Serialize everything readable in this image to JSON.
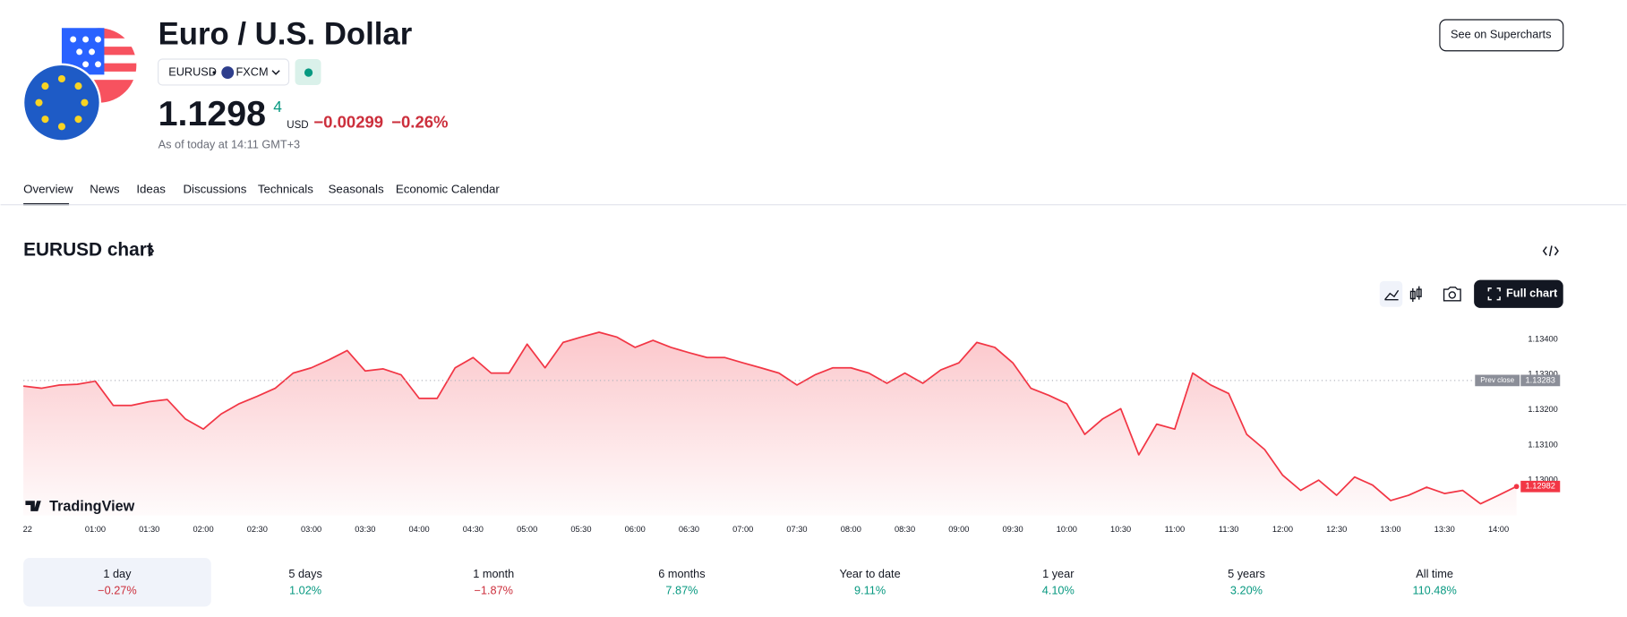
{
  "header": {
    "title": "Euro / U.S. Dollar",
    "symbol": "EURUSD",
    "exchange": "FXCM",
    "price": "1.1298",
    "price_extra_digit": "4",
    "currency": "USD",
    "change": "−0.00299",
    "change_percent": "−0.26%",
    "as_of": "As of today at 14:11 GMT+3"
  },
  "buttons": {
    "supercharts": "See on Supercharts",
    "full_chart": "Full chart"
  },
  "tabs": [
    "Overview",
    "News",
    "Ideas",
    "Discussions",
    "Technicals",
    "Seasonals",
    "Economic Calendar"
  ],
  "chart_section": {
    "title": "EURUSD chart"
  },
  "branding": "TradingView",
  "chart_data": {
    "type": "line",
    "color": "#f23645",
    "x": [
      "00:20",
      "00:30",
      "00:40",
      "00:50",
      "01:00",
      "01:10",
      "01:20",
      "01:30",
      "01:40",
      "01:50",
      "02:00",
      "02:10",
      "02:20",
      "02:30",
      "02:40",
      "02:50",
      "03:00",
      "03:10",
      "03:20",
      "03:30",
      "03:40",
      "03:50",
      "04:00",
      "04:10",
      "04:20",
      "04:30",
      "04:40",
      "04:50",
      "05:00",
      "05:10",
      "05:20",
      "05:30",
      "05:40",
      "05:50",
      "06:00",
      "06:10",
      "06:20",
      "06:30",
      "06:40",
      "06:50",
      "07:00",
      "07:10",
      "07:20",
      "07:30",
      "07:40",
      "07:50",
      "08:00",
      "08:10",
      "08:20",
      "08:30",
      "08:40",
      "08:50",
      "09:00",
      "09:10",
      "09:20",
      "09:30",
      "09:40",
      "09:50",
      "10:00",
      "10:10",
      "10:20",
      "10:30",
      "10:40",
      "10:50",
      "11:00",
      "11:10",
      "11:20",
      "11:30",
      "11:40",
      "11:50",
      "12:00",
      "12:10",
      "12:20",
      "12:30",
      "12:40",
      "12:50",
      "13:00",
      "13:10",
      "13:20",
      "13:30",
      "13:40",
      "13:50",
      "14:00",
      "14:10"
    ],
    "values": [
      1.13267,
      1.13261,
      1.1327,
      1.13272,
      1.13281,
      1.13212,
      1.13212,
      1.13223,
      1.13229,
      1.13174,
      1.13145,
      1.13188,
      1.13217,
      1.13238,
      1.13261,
      1.13304,
      1.13319,
      1.13342,
      1.13368,
      1.1331,
      1.13316,
      1.13299,
      1.13232,
      1.13232,
      1.13319,
      1.13348,
      1.13304,
      1.13304,
      1.13386,
      1.13319,
      1.13391,
      1.13406,
      1.1342,
      1.13406,
      1.13377,
      1.13397,
      1.13377,
      1.13362,
      1.13348,
      1.13348,
      1.13333,
      1.13319,
      1.13304,
      1.1327,
      1.13299,
      1.13319,
      1.13319,
      1.13304,
      1.13275,
      1.13304,
      1.13275,
      1.13313,
      1.13333,
      1.13391,
      1.13377,
      1.13333,
      1.13261,
      1.13241,
      1.13217,
      1.1313,
      1.13174,
      1.13203,
      1.13072,
      1.13159,
      1.13145,
      1.13304,
      1.1327,
      1.13246,
      1.1313,
      1.13087,
      1.13014,
      1.12971,
      1.13,
      1.12957,
      1.13009,
      1.12986,
      1.12942,
      1.12957,
      1.1298,
      1.12962,
      1.12971,
      1.12933,
      1.12957,
      1.12982
    ],
    "ylim": [
      1.129,
      1.1348
    ],
    "yticks": [
      {
        "value": 1.134,
        "label": "1.13400"
      },
      {
        "value": 1.133,
        "label": "1.13300"
      },
      {
        "value": 1.132,
        "label": "1.13200"
      },
      {
        "value": 1.131,
        "label": "1.13100"
      },
      {
        "value": 1.13,
        "label": "1.13000"
      }
    ],
    "xticks": [
      "22",
      "01:00",
      "01:30",
      "02:00",
      "02:30",
      "03:00",
      "03:30",
      "04:00",
      "04:30",
      "05:00",
      "05:30",
      "06:00",
      "06:30",
      "07:00",
      "07:30",
      "08:00",
      "08:30",
      "09:00",
      "09:30",
      "10:00",
      "10:30",
      "11:00",
      "11:30",
      "12:00",
      "12:30",
      "13:00",
      "13:30",
      "14:00"
    ],
    "prev_close": {
      "label": "Prev close",
      "value": 1.13283
    }
  },
  "periods": [
    {
      "label": "1 day",
      "change": "−0.27%",
      "color": "#cc2f3c"
    },
    {
      "label": "5 days",
      "change": "1.02%",
      "color": "#089981"
    },
    {
      "label": "1 month",
      "change": "−1.87%",
      "color": "#cc2f3c"
    },
    {
      "label": "6 months",
      "change": "7.87%",
      "color": "#089981"
    },
    {
      "label": "Year to date",
      "change": "9.11%",
      "color": "#089981"
    },
    {
      "label": "1 year",
      "change": "4.10%",
      "color": "#089981"
    },
    {
      "label": "5 years",
      "change": "3.20%",
      "color": "#089981"
    },
    {
      "label": "All time",
      "change": "110.48%",
      "color": "#089981"
    }
  ]
}
